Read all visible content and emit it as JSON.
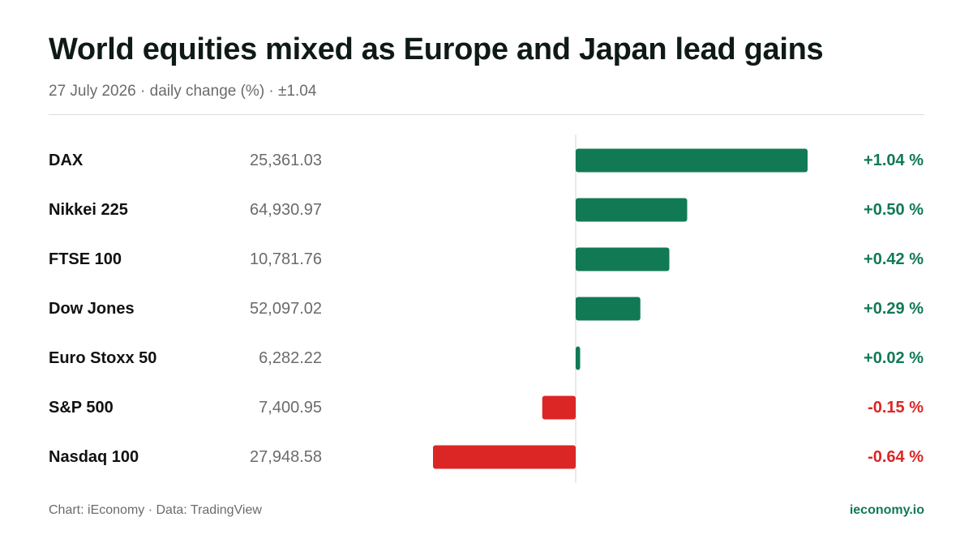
{
  "header": {
    "title": "World equities mixed as Europe and Japan lead gains",
    "subtitle": "27 July 2026 · daily change (%) · ±1.04"
  },
  "footer": {
    "source": "Chart: iEconomy · Data: TradingView",
    "brand": "ieconomy.io"
  },
  "colors": {
    "positive": "#117a55",
    "negative": "#dc2626",
    "label": "#111111",
    "value": "#6b6b6b",
    "axis": "#d4d4d4"
  },
  "chart_data": {
    "type": "bar",
    "orientation": "horizontal",
    "categories": [
      "DAX",
      "Nikkei 225",
      "FTSE 100",
      "Dow Jones",
      "Euro Stoxx 50",
      "S&P 500",
      "Nasdaq 100"
    ],
    "index_levels": [
      "25,361.03",
      "64,930.97",
      "10,781.76",
      "52,097.02",
      "6,282.22",
      "7,400.95",
      "27,948.58"
    ],
    "values": [
      1.04,
      0.5,
      0.42,
      0.29,
      0.02,
      -0.15,
      -0.64
    ],
    "change_labels": [
      "+1.04 %",
      "+0.50 %",
      "+0.42 %",
      "+0.29 %",
      "+0.02 %",
      "-0.15 %",
      "-0.64 %"
    ],
    "xlim": [
      -1.04,
      1.04
    ],
    "zero_line": true,
    "grid": false,
    "legend": "none"
  }
}
